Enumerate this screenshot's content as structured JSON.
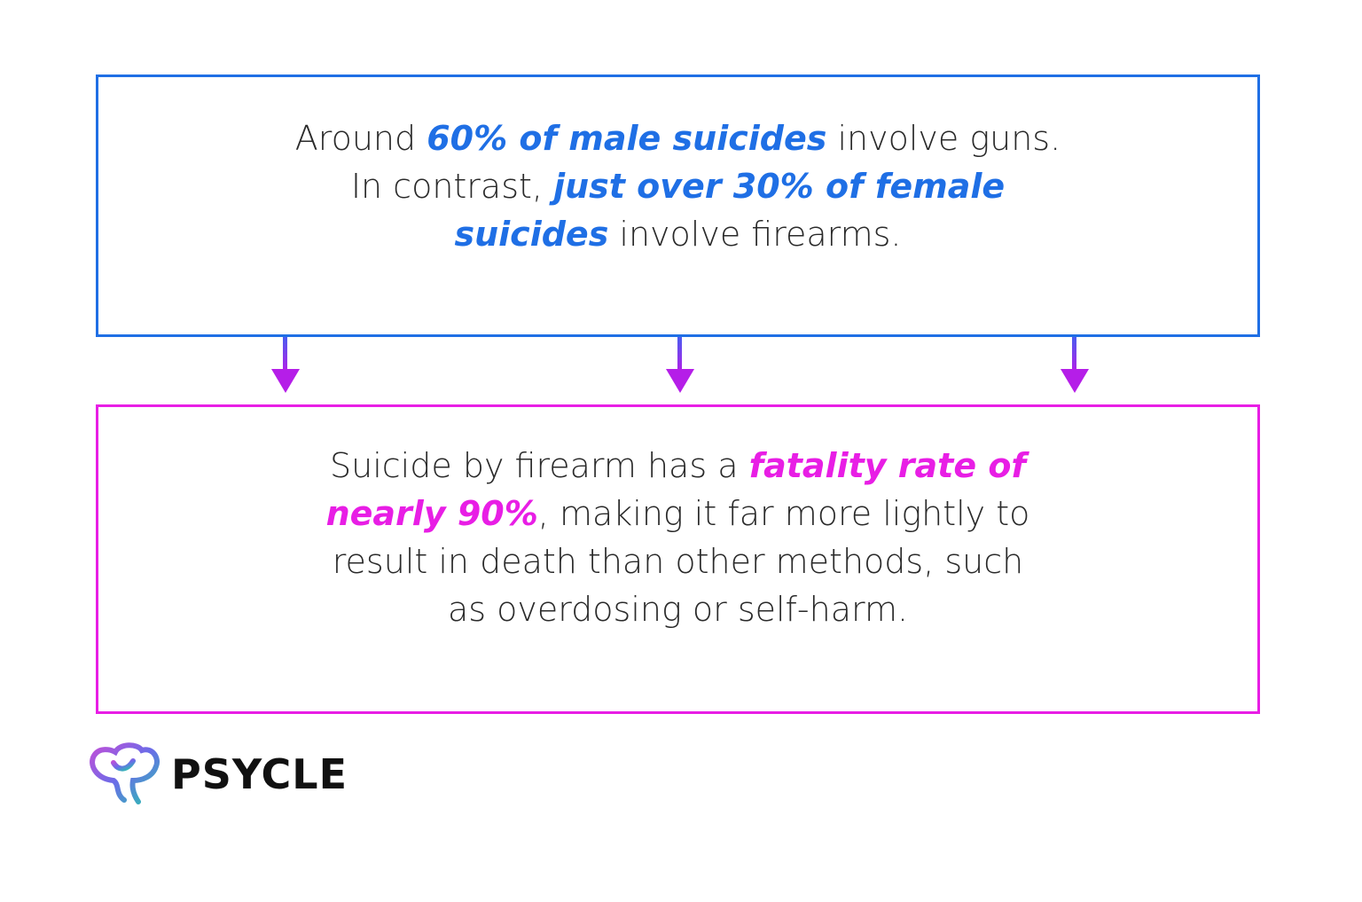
{
  "top": {
    "lines": [
      [
        {
          "text": "Around "
        },
        {
          "text": "60% of male suicides",
          "emphasis": true
        },
        {
          "text": " involve guns."
        }
      ],
      [
        {
          "text": "In contrast, "
        },
        {
          "text": "just over 30% of female",
          "emphasis": true
        }
      ],
      [
        {
          "text": "suicides",
          "emphasis": true
        },
        {
          "text": " involve firearms."
        }
      ]
    ]
  },
  "bottom": {
    "lines": [
      [
        {
          "text": "Suicide by firearm has a "
        },
        {
          "text": "fatality rate of",
          "emphasis": true
        }
      ],
      [
        {
          "text": "nearly 90%",
          "emphasis": true
        },
        {
          "text": ", making it far more lightly to"
        }
      ],
      [
        {
          "text": "result in death than other methods, such"
        }
      ],
      [
        {
          "text": "as overdosing or self-harm."
        }
      ]
    ]
  },
  "logo": {
    "text": "PSYCLE"
  }
}
